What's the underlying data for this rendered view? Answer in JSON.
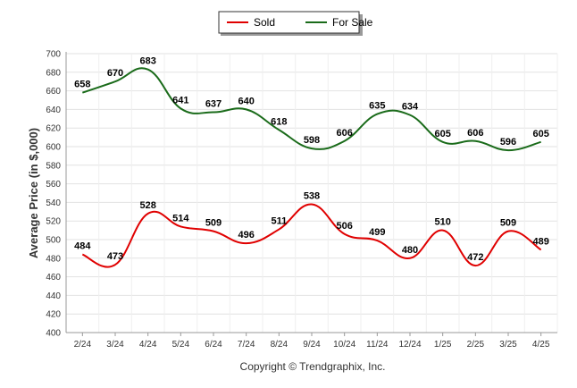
{
  "chart_data": {
    "type": "line",
    "categories": [
      "2/24",
      "3/24",
      "4/24",
      "5/24",
      "6/24",
      "7/24",
      "8/24",
      "9/24",
      "10/24",
      "11/24",
      "12/24",
      "1/25",
      "2/25",
      "3/25",
      "4/25"
    ],
    "series": [
      {
        "name": "Sold",
        "color": "#e00000",
        "values": [
          484,
          473,
          528,
          514,
          509,
          496,
          511,
          538,
          506,
          499,
          480,
          510,
          472,
          509,
          489
        ]
      },
      {
        "name": "For Sale",
        "color": "#1a6b1a",
        "values": [
          658,
          670,
          683,
          641,
          637,
          640,
          618,
          598,
          606,
          635,
          634,
          605,
          606,
          596,
          605
        ]
      }
    ],
    "ylabel": "Average Price (in $,000)",
    "xlabel": "",
    "ylim": [
      400,
      700
    ],
    "yticks": [
      400,
      420,
      440,
      460,
      480,
      500,
      520,
      540,
      560,
      580,
      600,
      620,
      640,
      660,
      680,
      700
    ],
    "grid": true,
    "legend_position": "top-center"
  },
  "footer": "Copyright © Trendgraphix, Inc."
}
